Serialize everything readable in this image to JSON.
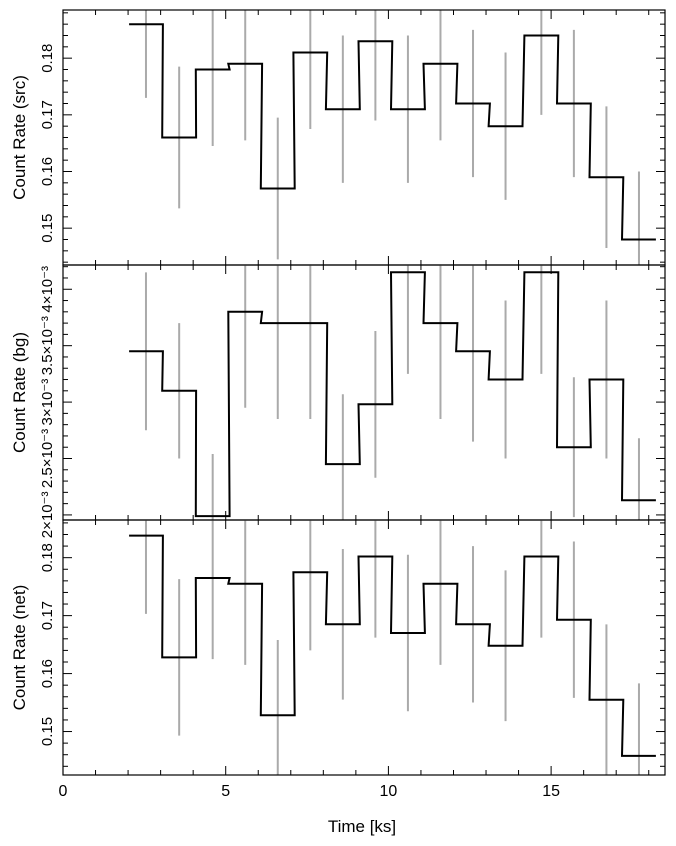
{
  "figure": {
    "xlabel": "Time [ks]",
    "xticks": [
      "0",
      "5",
      "10",
      "15"
    ]
  },
  "chart_data": [
    {
      "type": "line",
      "style": "step-with-errorbars",
      "ylabel": "Count Rate (src)",
      "xlim": [
        0,
        18.5
      ],
      "ylim": [
        0.1435,
        0.1885
      ],
      "yticks": [
        0.15,
        0.16,
        0.17,
        0.18
      ],
      "ytick_labels": [
        "0.15",
        "0.16",
        "0.17",
        "0.18"
      ],
      "x": [
        2.55,
        3.57,
        4.6,
        5.6,
        6.6,
        7.6,
        8.6,
        9.6,
        10.6,
        11.6,
        12.6,
        13.6,
        14.7,
        15.7,
        16.7,
        17.7
      ],
      "xerr": 0.52,
      "values": [
        0.186,
        0.166,
        0.178,
        0.179,
        0.157,
        0.181,
        0.171,
        0.183,
        0.171,
        0.179,
        0.172,
        0.168,
        0.184,
        0.172,
        0.159,
        0.148
      ],
      "yerr": [
        0.013,
        0.0125,
        0.0135,
        0.0135,
        0.0125,
        0.0135,
        0.013,
        0.014,
        0.013,
        0.0135,
        0.013,
        0.013,
        0.014,
        0.013,
        0.0125,
        0.012
      ],
      "colors": {
        "line": "#000000",
        "errorbar": "#aaaaaa"
      }
    },
    {
      "type": "line",
      "style": "step-with-errorbars",
      "ylabel": "Count Rate (bg)",
      "xlim": [
        0,
        18.5
      ],
      "ylim": [
        0.001955,
        0.004215
      ],
      "yticks": [
        0.002,
        0.0025,
        0.003,
        0.0035,
        0.004
      ],
      "ytick_labels": [
        "2×10⁻³",
        "2.5×10⁻³",
        "3×10⁻³",
        "3.5×10⁻³",
        "4×10⁻³"
      ],
      "x": [
        2.55,
        3.57,
        4.6,
        5.6,
        6.6,
        7.6,
        8.6,
        9.6,
        10.6,
        11.6,
        12.6,
        13.6,
        14.7,
        15.7,
        16.7,
        17.7
      ],
      "xerr": 0.52,
      "values": [
        0.00345,
        0.0031,
        0.00199,
        0.0038,
        0.0037,
        0.0037,
        0.00245,
        0.00298,
        0.00415,
        0.0037,
        0.00345,
        0.0032,
        0.00415,
        0.0026,
        0.0032,
        0.00213
      ],
      "yerr": [
        0.0007,
        0.0006,
        0.00055,
        0.00085,
        0.00085,
        0.00085,
        0.00062,
        0.00065,
        0.0009,
        0.00085,
        0.0008,
        0.0007,
        0.0009,
        0.00062,
        0.0007,
        0.00055
      ],
      "colors": {
        "line": "#000000",
        "errorbar": "#aaaaaa"
      }
    },
    {
      "type": "line",
      "style": "step-with-errorbars",
      "ylabel": "Count Rate (net)",
      "xlim": [
        0,
        18.5
      ],
      "ylim": [
        0.1425,
        0.1865
      ],
      "yticks": [
        0.15,
        0.16,
        0.17,
        0.18
      ],
      "ytick_labels": [
        "0.15",
        "0.16",
        "0.17",
        "0.18"
      ],
      "x": [
        2.55,
        3.57,
        4.6,
        5.6,
        6.6,
        7.6,
        8.6,
        9.6,
        10.6,
        11.6,
        12.6,
        13.6,
        14.7,
        15.7,
        16.7,
        17.7
      ],
      "xerr": 0.52,
      "values": [
        0.1838,
        0.1628,
        0.1765,
        0.1755,
        0.1528,
        0.1775,
        0.1685,
        0.1802,
        0.167,
        0.1755,
        0.1685,
        0.1648,
        0.1802,
        0.1693,
        0.1555,
        0.1458
      ],
      "yerr": [
        0.0135,
        0.0135,
        0.014,
        0.014,
        0.013,
        0.0135,
        0.013,
        0.014,
        0.0135,
        0.014,
        0.0135,
        0.013,
        0.014,
        0.0135,
        0.013,
        0.0125
      ],
      "colors": {
        "line": "#000000",
        "errorbar": "#aaaaaa"
      }
    }
  ]
}
